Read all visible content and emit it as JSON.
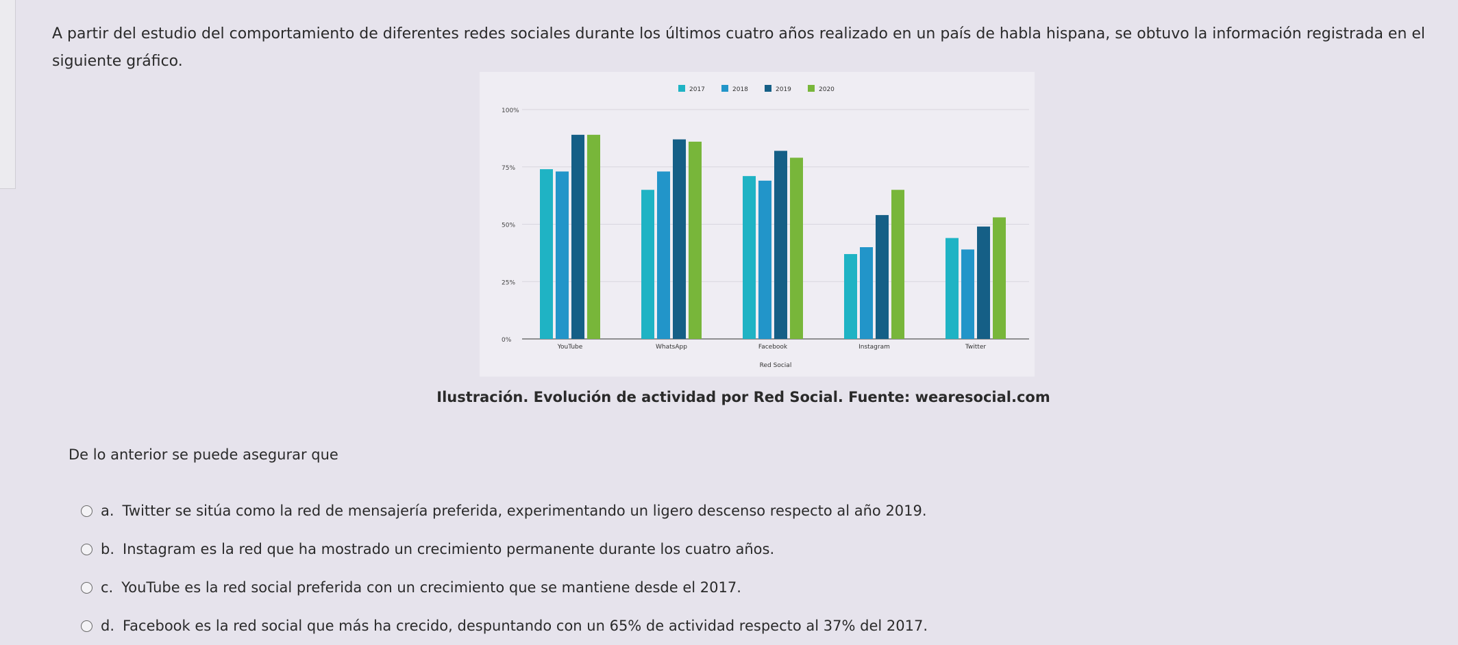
{
  "question": {
    "text": "A partir del estudio del comportamiento de diferentes redes sociales durante los últimos cuatro años realizado en un país de habla hispana, se obtuvo la información registrada en el siguiente gráfico."
  },
  "chart_data": {
    "type": "bar",
    "xlabel": "Red Social",
    "ylabel": "",
    "ylim": [
      0,
      100
    ],
    "yticks": [
      "0%",
      "25%",
      "50%",
      "75%",
      "100%"
    ],
    "ytick_values": [
      0,
      25,
      50,
      75,
      100
    ],
    "grid": true,
    "legend_position": "top",
    "categories": [
      "YouTube",
      "WhatsApp",
      "Facebook",
      "Instagram",
      "Twitter"
    ],
    "series": [
      {
        "name": "2017",
        "color": "#1fb3c4",
        "values": [
          74,
          65,
          71,
          37,
          44
        ]
      },
      {
        "name": "2018",
        "color": "#2295c9",
        "values": [
          73,
          73,
          69,
          40,
          39
        ]
      },
      {
        "name": "2019",
        "color": "#155f86",
        "values": [
          89,
          87,
          82,
          54,
          49
        ]
      },
      {
        "name": "2020",
        "color": "#78b63a",
        "values": [
          89,
          86,
          79,
          65,
          53
        ]
      }
    ]
  },
  "caption": "Ilustración. Evolución de actividad por Red Social. Fuente: wearesocial.com",
  "lead": "De lo anterior se puede asegurar que",
  "options": [
    {
      "letter": "a.",
      "text": "Twitter se sitúa como la red de mensajería preferida, experimentando un ligero descenso respecto al año 2019."
    },
    {
      "letter": "b.",
      "text": "Instagram es la red que ha mostrado un crecimiento permanente durante los cuatro años."
    },
    {
      "letter": "c.",
      "text": "YouTube es la red social preferida con un crecimiento que se mantiene desde el 2017."
    },
    {
      "letter": "d.",
      "text": "Facebook es la red social que más ha crecido, despuntando con un 65% de actividad respecto al 37% del 2017."
    }
  ]
}
